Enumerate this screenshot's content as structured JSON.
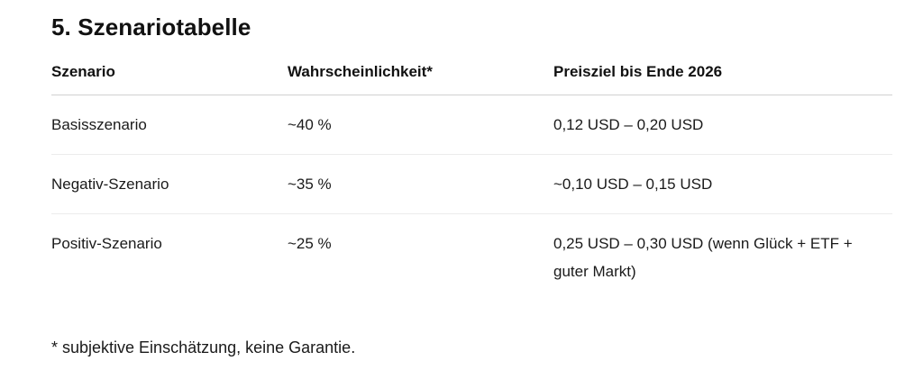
{
  "section": {
    "title": "5. Szenariotabelle"
  },
  "table": {
    "columns": {
      "szenario": "Szenario",
      "wahrscheinlichkeit": "Wahrscheinlichkeit*",
      "preisziel": "Preisziel bis Ende 2026"
    },
    "rows": [
      {
        "szenario": "Basisszenario",
        "wahrscheinlichkeit": "~40 %",
        "preisziel": "0,12 USD – 0,20 USD"
      },
      {
        "szenario": "Negativ-Szenario",
        "wahrscheinlichkeit": "~35 %",
        "preisziel": "~0,10 USD – 0,15 USD"
      },
      {
        "szenario": "Positiv-Szenario",
        "wahrscheinlichkeit": "~25 %",
        "preisziel": "0,25 USD – 0,30 USD (wenn Glück + ETF + guter Markt)"
      }
    ],
    "footnote": "* subjektive Einschätzung, keine Garantie."
  },
  "colors": {
    "text": "#1a1a1a",
    "heading": "#111111",
    "header_border": "#d1d1d1",
    "row_border": "#ececec",
    "background": "#ffffff"
  }
}
